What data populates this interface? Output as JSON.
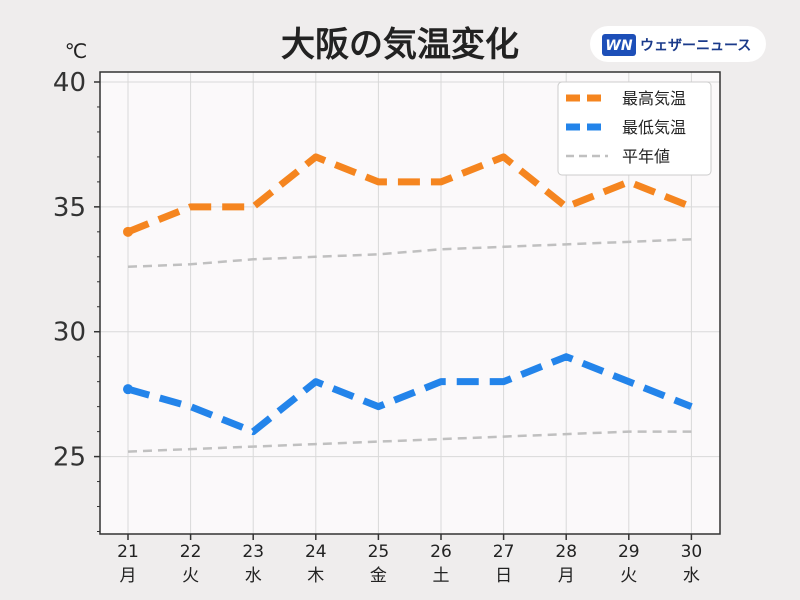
{
  "brand": {
    "logo": "WN",
    "name": "ウェザーニュース"
  },
  "chart_data": {
    "type": "line",
    "title": "大阪の気温変化",
    "ylabel": "℃",
    "xlabel": "",
    "ylim": [
      21.9,
      40.4
    ],
    "yticks": [
      25,
      30,
      35,
      40
    ],
    "grid": true,
    "legend_position": "top-right",
    "categories": [
      {
        "day": "21",
        "weekday": "月",
        "color": "#d0343c"
      },
      {
        "day": "22",
        "weekday": "火",
        "color": "#222222"
      },
      {
        "day": "23",
        "weekday": "水",
        "color": "#222222"
      },
      {
        "day": "24",
        "weekday": "木",
        "color": "#222222"
      },
      {
        "day": "25",
        "weekday": "金",
        "color": "#222222"
      },
      {
        "day": "26",
        "weekday": "土",
        "color": "#2e8fdc"
      },
      {
        "day": "27",
        "weekday": "日",
        "color": "#d0343c"
      },
      {
        "day": "28",
        "weekday": "月",
        "color": "#222222"
      },
      {
        "day": "29",
        "weekday": "火",
        "color": "#222222"
      },
      {
        "day": "30",
        "weekday": "水",
        "color": "#222222"
      }
    ],
    "series": [
      {
        "name": "最高気温",
        "color": "#f5851f",
        "style": "thick-dashed",
        "values": [
          34,
          35,
          35,
          37,
          36,
          36,
          37,
          35,
          36,
          35
        ]
      },
      {
        "name": "最低気温",
        "color": "#2384ea",
        "style": "thick-dashed",
        "values": [
          27.7,
          27,
          26,
          28,
          27,
          28,
          28,
          29,
          28,
          27
        ]
      },
      {
        "name": "平年値",
        "color": "#c0c0c0",
        "style": "thin-dashed",
        "values": [
          32.6,
          32.7,
          32.9,
          33.0,
          33.1,
          33.3,
          33.4,
          33.5,
          33.6,
          33.7
        ]
      },
      {
        "name": "",
        "color": "#c0c0c0",
        "style": "thin-dashed",
        "values": [
          25.2,
          25.3,
          25.4,
          25.5,
          25.6,
          25.7,
          25.8,
          25.9,
          26.0,
          26.0
        ]
      }
    ]
  }
}
